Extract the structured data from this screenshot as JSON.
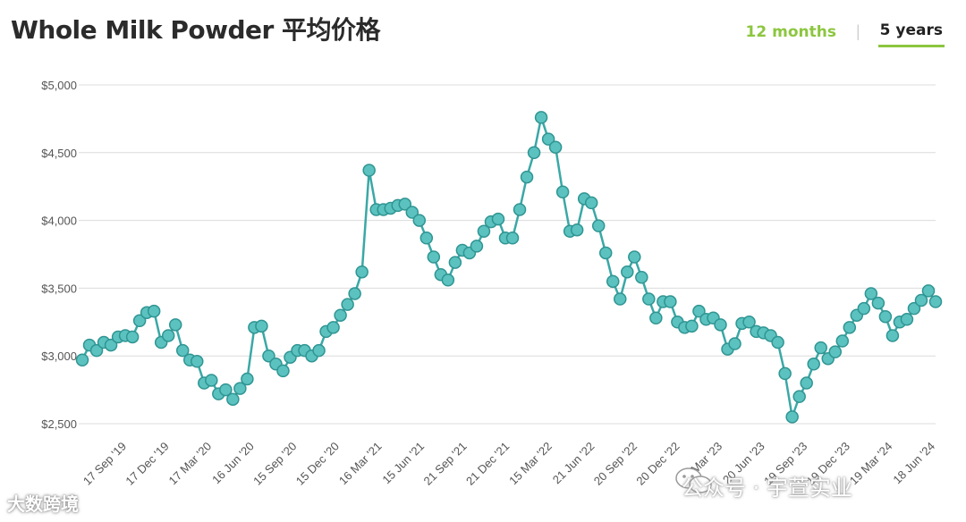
{
  "header": {
    "title": "Whole Milk Powder 平均价格",
    "tab_12_months": "12 months",
    "tab_separator": "|",
    "tab_5_years": "5 years"
  },
  "colors": {
    "line": "#3aa8a6",
    "marker_fill": "#5cc2bf",
    "marker_stroke": "#2f9593",
    "grid": "#dcdcdc",
    "active_tab_underline": "#8cc63f",
    "inactive_tab": "#8cc63f"
  },
  "watermarks": {
    "left": "大数跨境",
    "right": "公众号 · 宇萱实业"
  },
  "chart_data": {
    "type": "line",
    "title": "Whole Milk Powder 平均价格",
    "xlabel": "",
    "ylabel": "",
    "ylim": [
      2500,
      5000
    ],
    "y_ticks": [
      "$2,500",
      "$3,000",
      "$3,500",
      "$4,000",
      "$4,500",
      "$5,000"
    ],
    "x_tick_labels": [
      "17 Sep '19",
      "17 Dec '19",
      "17 Mar '20",
      "16 Jun '20",
      "15 Sep '20",
      "15 Dec '20",
      "16 Mar '21",
      "15 Jun '21",
      "21 Sep '21",
      "21 Dec '21",
      "15 Mar '22",
      "21 Jun '22",
      "20 Sep '22",
      "20 Dec '22",
      "21 Mar '23",
      "20 Jun '23",
      "19 Sep '23",
      "19 Dec '23",
      "19 Mar '24",
      "18 Jun '24"
    ],
    "grid": true,
    "legend": "none",
    "series": [
      {
        "values": [
          2970,
          3080,
          3040,
          3100,
          3080,
          3140,
          3150,
          3140,
          3260,
          3320,
          3330,
          3100,
          3150,
          3230,
          3040,
          2970,
          2960,
          2800,
          2820,
          2720,
          2750,
          2680,
          2760,
          2830,
          3210,
          3220,
          3000,
          2940,
          2890,
          2990,
          3040,
          3040,
          3000,
          3040,
          3180,
          3210,
          3300,
          3380,
          3460,
          3620,
          4370,
          4080,
          4080,
          4090,
          4110,
          4120,
          4060,
          4000,
          3870,
          3730,
          3600,
          3560,
          3690,
          3780,
          3760,
          3810,
          3920,
          3990,
          4010,
          3870,
          3870,
          4080,
          4320,
          4500,
          4760,
          4600,
          4540,
          4210,
          3920,
          3930,
          4160,
          4130,
          3960,
          3760,
          3550,
          3420,
          3620,
          3730,
          3580,
          3420,
          3280,
          3400,
          3400,
          3250,
          3210,
          3220,
          3330,
          3270,
          3280,
          3230,
          3050,
          3090,
          3240,
          3250,
          3180,
          3170,
          3150,
          3100,
          2870,
          2550,
          2700,
          2800,
          2940,
          3060,
          2980,
          3030,
          3110,
          3210,
          3300,
          3350,
          3460,
          3390,
          3290,
          3150,
          3250,
          3270,
          3350,
          3410,
          3480,
          3400
        ]
      }
    ]
  }
}
